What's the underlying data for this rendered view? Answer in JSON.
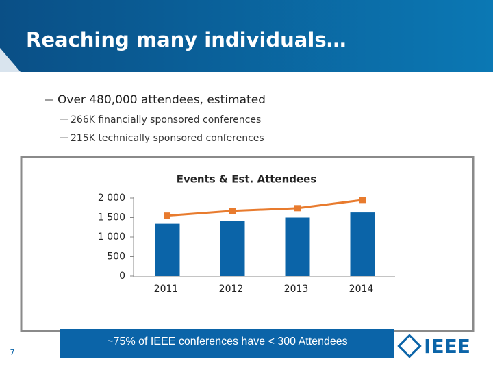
{
  "header": {
    "title": "Reaching many individuals…"
  },
  "bullets": {
    "main": "Over 480,000 attendees, estimated",
    "sub": [
      "266K financially sponsored conferences",
      "215K technically sponsored conferences"
    ]
  },
  "chart_data": {
    "type": "bar",
    "title": "Events & Est. Attendees",
    "categories": [
      "2011",
      "2012",
      "2013",
      "2014"
    ],
    "series": [
      {
        "type": "bar",
        "color": "#0b64a8",
        "values": [
          1340,
          1410,
          1500,
          1630
        ]
      },
      {
        "type": "line",
        "color": "#e87b2e",
        "values": [
          1550,
          1670,
          1740,
          1950
        ]
      }
    ],
    "ylim": [
      0,
      2000
    ],
    "yticks": [
      0,
      500,
      {
        "value": 1000,
        "label": "1 000"
      },
      {
        "value": 1500,
        "label": "1 500"
      },
      {
        "value": 2000,
        "label": "2 000"
      }
    ],
    "grid": false
  },
  "callout": "~75% of IEEE conferences have < 300 Attendees",
  "page_number": "7",
  "logo": "IEEE"
}
